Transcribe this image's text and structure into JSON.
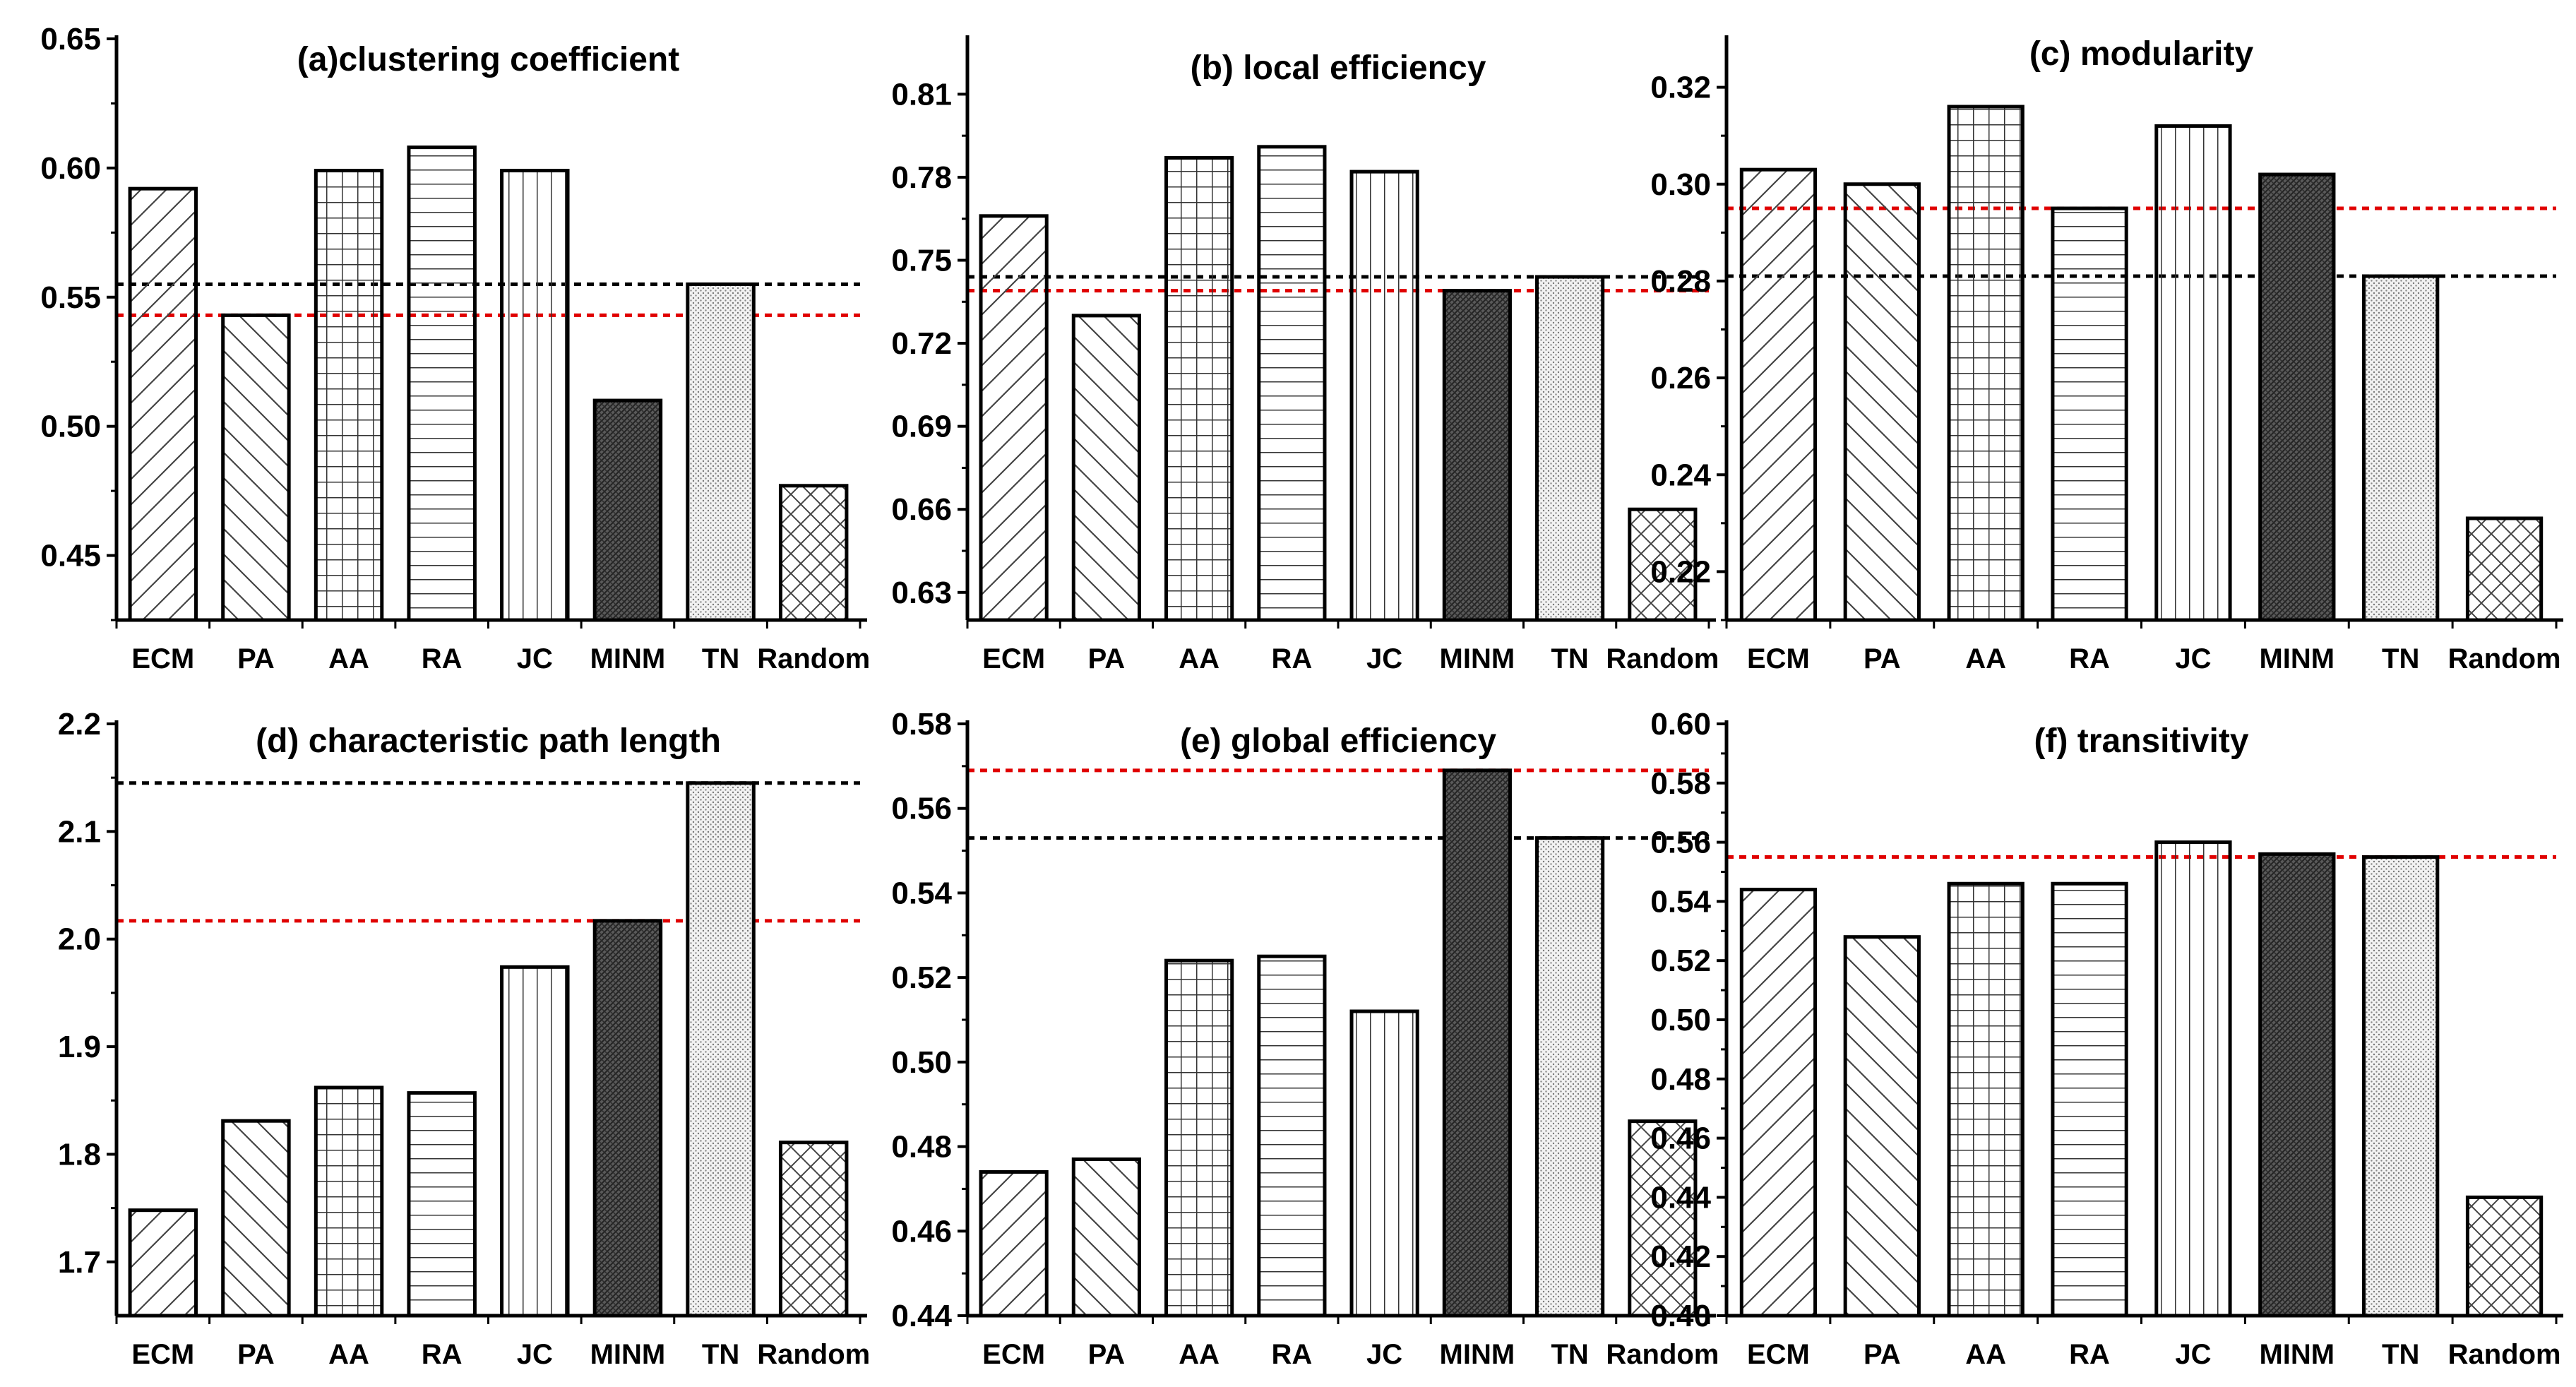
{
  "chart_data": [
    {
      "type": "bar",
      "title": "(a)clustering coefficient",
      "categories": [
        "ECM",
        "PA",
        "AA",
        "RA",
        "JC",
        "MINM",
        "TN",
        "Random"
      ],
      "values": [
        0.592,
        0.543,
        0.599,
        0.608,
        0.599,
        0.51,
        0.555,
        0.477
      ],
      "ylim": [
        0.425,
        0.65
      ],
      "yticks": [
        0.45,
        0.5,
        0.55,
        0.6,
        0.65
      ],
      "tick_labels": [
        "0.45",
        "0.50",
        "0.55",
        "0.60",
        "0.65"
      ],
      "reference_lines": [
        {
          "color": "#000000",
          "value": 0.555
        },
        {
          "color": "#e00000",
          "value": 0.543
        }
      ],
      "xlabel": "",
      "ylabel": ""
    },
    {
      "type": "bar",
      "title": "(b) local efficiency",
      "categories": [
        "ECM",
        "PA",
        "AA",
        "RA",
        "JC",
        "MINM",
        "TN",
        "Random"
      ],
      "values": [
        0.766,
        0.73,
        0.787,
        0.791,
        0.782,
        0.739,
        0.744,
        0.66
      ],
      "ylim": [
        0.62,
        0.83
      ],
      "yticks": [
        0.63,
        0.66,
        0.69,
        0.72,
        0.75,
        0.78,
        0.81
      ],
      "tick_labels": [
        "0.63",
        "0.66",
        "0.69",
        "0.72",
        "0.75",
        "0.78",
        "0.81"
      ],
      "reference_lines": [
        {
          "color": "#000000",
          "value": 0.744
        },
        {
          "color": "#e00000",
          "value": 0.739
        }
      ],
      "xlabel": "",
      "ylabel": ""
    },
    {
      "type": "bar",
      "title": "(c) modularity",
      "categories": [
        "ECM",
        "PA",
        "AA",
        "RA",
        "JC",
        "MINM",
        "TN",
        "Random"
      ],
      "values": [
        0.303,
        0.3,
        0.316,
        0.295,
        0.312,
        0.302,
        0.281,
        0.231
      ],
      "ylim": [
        0.21,
        0.33
      ],
      "yticks": [
        0.22,
        0.24,
        0.26,
        0.28,
        0.3,
        0.32
      ],
      "tick_labels": [
        "0.22",
        "0.24",
        "0.26",
        "0.28",
        "0.30",
        "0.32"
      ],
      "reference_lines": [
        {
          "color": "#000000",
          "value": 0.281
        },
        {
          "color": "#e00000",
          "value": 0.295
        }
      ],
      "xlabel": "",
      "ylabel": ""
    },
    {
      "type": "bar",
      "title": "(d) characteristic path length",
      "categories": [
        "ECM",
        "PA",
        "AA",
        "RA",
        "JC",
        "MINM",
        "TN",
        "Random"
      ],
      "values": [
        1.748,
        1.831,
        1.862,
        1.857,
        1.974,
        2.017,
        2.145,
        1.811
      ],
      "ylim": [
        1.65,
        2.2
      ],
      "yticks": [
        1.7,
        1.8,
        1.9,
        2.0,
        2.1,
        2.2
      ],
      "tick_labels": [
        "1.7",
        "1.8",
        "1.9",
        "2.0",
        "2.1",
        "2.2"
      ],
      "reference_lines": [
        {
          "color": "#000000",
          "value": 2.145
        },
        {
          "color": "#e00000",
          "value": 2.017
        }
      ],
      "xlabel": "",
      "ylabel": ""
    },
    {
      "type": "bar",
      "title": "(e) global efficiency",
      "categories": [
        "ECM",
        "PA",
        "AA",
        "RA",
        "JC",
        "MINM",
        "TN",
        "Random"
      ],
      "values": [
        0.474,
        0.477,
        0.524,
        0.525,
        0.512,
        0.569,
        0.553,
        0.486
      ],
      "ylim": [
        0.44,
        0.58
      ],
      "yticks": [
        0.44,
        0.46,
        0.48,
        0.5,
        0.52,
        0.54,
        0.56,
        0.58
      ],
      "tick_labels": [
        "0.44",
        "0.46",
        "0.48",
        "0.50",
        "0.52",
        "0.54",
        "0.56",
        "0.58"
      ],
      "reference_lines": [
        {
          "color": "#000000",
          "value": 0.553
        },
        {
          "color": "#e00000",
          "value": 0.569
        }
      ],
      "xlabel": "",
      "ylabel": ""
    },
    {
      "type": "bar",
      "title": "(f) transitivity",
      "categories": [
        "ECM",
        "PA",
        "AA",
        "RA",
        "JC",
        "MINM",
        "TN",
        "Random"
      ],
      "values": [
        0.544,
        0.528,
        0.546,
        0.546,
        0.56,
        0.556,
        0.555,
        0.44
      ],
      "ylim": [
        0.4,
        0.6
      ],
      "yticks": [
        0.4,
        0.42,
        0.44,
        0.46,
        0.48,
        0.5,
        0.52,
        0.54,
        0.56,
        0.58,
        0.6
      ],
      "tick_labels": [
        "0.40",
        "0.42",
        "0.44",
        "0.46",
        "0.48",
        "0.50",
        "0.52",
        "0.54",
        "0.56",
        "0.58",
        "0.60"
      ],
      "reference_lines": [
        {
          "color": "#000000",
          "value": 0.555
        },
        {
          "color": "#e00000",
          "value": 0.555
        }
      ],
      "xlabel": "",
      "ylabel": ""
    }
  ],
  "bar_patterns": [
    "diag-forward",
    "diag-backward",
    "grid",
    "horizontal",
    "vertical",
    "dense-dark",
    "dots",
    "crosshatch"
  ]
}
